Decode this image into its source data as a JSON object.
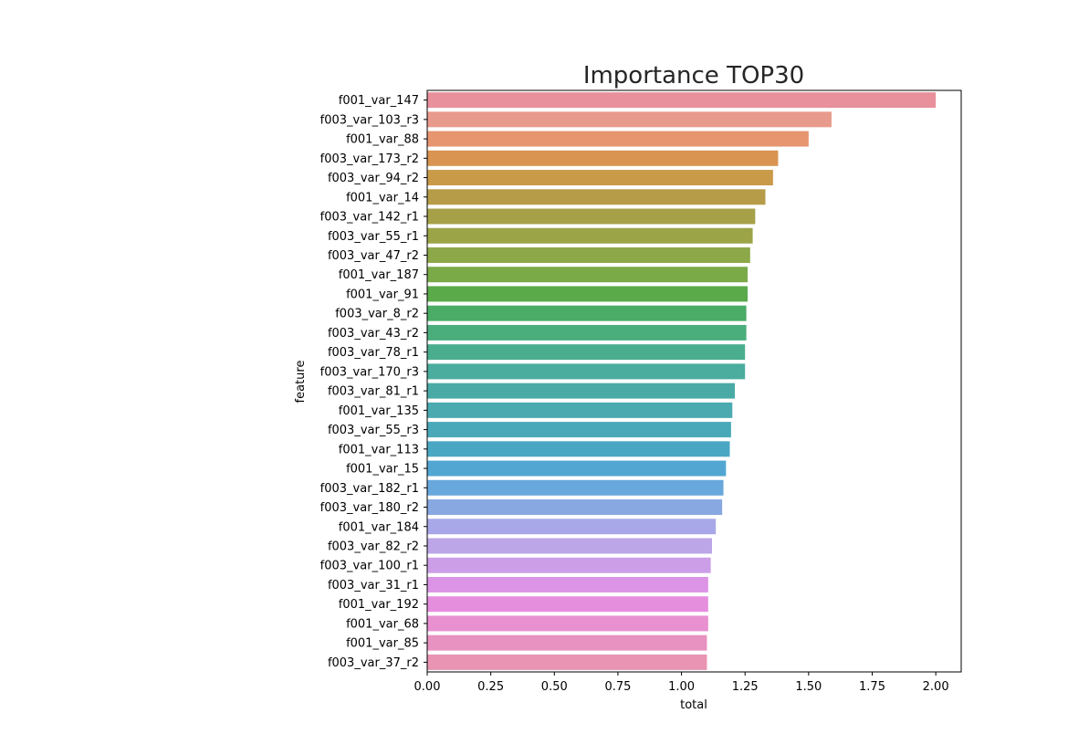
{
  "chart_data": {
    "type": "bar",
    "orientation": "horizontal",
    "title": "Importance TOP30",
    "xlabel": "total",
    "ylabel": "feature",
    "xlim": [
      0,
      2.1
    ],
    "xticks": [
      "0.00",
      "0.25",
      "0.50",
      "0.75",
      "1.00",
      "1.25",
      "1.50",
      "1.75",
      "2.00"
    ],
    "grid": false,
    "legend": "none",
    "categories": [
      "f001_var_147",
      "f003_var_103_r3",
      "f001_var_88",
      "f003_var_173_r2",
      "f003_var_94_r2",
      "f001_var_14",
      "f003_var_142_r1",
      "f003_var_55_r1",
      "f003_var_47_r2",
      "f001_var_187",
      "f001_var_91",
      "f003_var_8_r2",
      "f003_var_43_r2",
      "f003_var_78_r1",
      "f003_var_170_r3",
      "f003_var_81_r1",
      "f001_var_135",
      "f003_var_55_r3",
      "f001_var_113",
      "f001_var_15",
      "f003_var_182_r1",
      "f003_var_180_r2",
      "f001_var_184",
      "f003_var_82_r2",
      "f003_var_100_r1",
      "f003_var_31_r1",
      "f001_var_192",
      "f001_var_68",
      "f001_var_85",
      "f003_var_37_r2"
    ],
    "values": [
      2.0,
      1.59,
      1.5,
      1.38,
      1.36,
      1.33,
      1.29,
      1.28,
      1.27,
      1.26,
      1.26,
      1.255,
      1.255,
      1.25,
      1.25,
      1.21,
      1.2,
      1.195,
      1.19,
      1.175,
      1.165,
      1.16,
      1.135,
      1.12,
      1.115,
      1.105,
      1.105,
      1.105,
      1.1,
      1.1
    ],
    "colors": [
      "#e8909c",
      "#e89a8c",
      "#e6956f",
      "#d89450",
      "#c99a48",
      "#b69c48",
      "#a6a048",
      "#9ca448",
      "#8ca848",
      "#7aaa48",
      "#5aaa4a",
      "#4aac66",
      "#4aad7c",
      "#4aae8e",
      "#4aad9e",
      "#4aaaa6",
      "#4aaab0",
      "#4aa9b8",
      "#4aa7c4",
      "#52a6d2",
      "#68a8dc",
      "#88a8e2",
      "#a8a8e8",
      "#bca6e8",
      "#cc9ee8",
      "#dc94e6",
      "#e68ede",
      "#e890d0",
      "#e892c2",
      "#e894b2"
    ]
  }
}
